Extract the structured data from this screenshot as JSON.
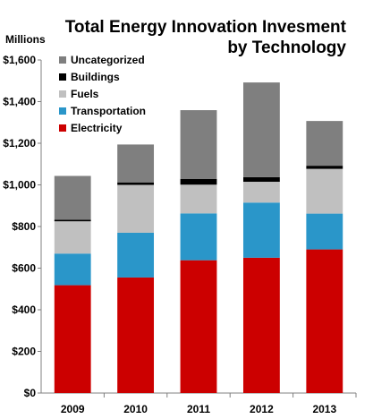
{
  "chart_data": {
    "type": "bar",
    "stacked": true,
    "title_line1": "Total Energy Innovation Invesment",
    "title_line2": "by Technology",
    "units_label": "Millions",
    "categories": [
      "2009",
      "2010",
      "2011",
      "2012",
      "2013"
    ],
    "ylim": [
      0,
      1600
    ],
    "yticks": [
      0,
      200,
      400,
      600,
      800,
      1000,
      1200,
      1400,
      1600
    ],
    "ytick_labels": [
      "$0",
      "$200",
      "$400",
      "$600",
      "$800",
      "$1,000",
      "$1,200",
      "$1,400",
      "$1,600"
    ],
    "legend_position": "top-left",
    "grid": false,
    "series": [
      {
        "name": "Electricity",
        "color": "#cc0000",
        "values": [
          518,
          555,
          638,
          650,
          690
        ]
      },
      {
        "name": "Transportation",
        "color": "#2a96c9",
        "values": [
          152,
          215,
          225,
          265,
          172
        ]
      },
      {
        "name": "Fuels",
        "color": "#c0c0c0",
        "values": [
          155,
          230,
          138,
          100,
          215
        ]
      },
      {
        "name": "Buildings",
        "color": "#000000",
        "values": [
          8,
          12,
          28,
          22,
          15
        ]
      },
      {
        "name": "Uncategorized",
        "color": "#7f7f7f",
        "values": [
          210,
          182,
          330,
          455,
          215
        ]
      }
    ]
  }
}
